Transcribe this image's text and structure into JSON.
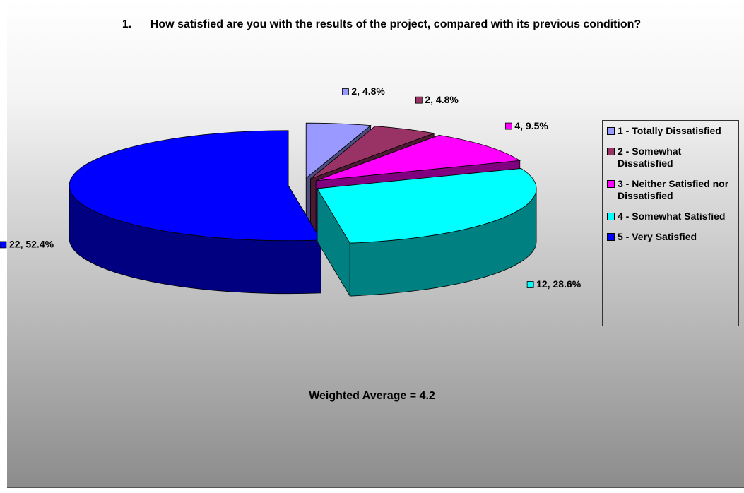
{
  "chart_data": {
    "type": "pie",
    "title": "1.      How satisfied are you with the results of the project, compared with its previous condition?",
    "categories": [
      "1 - Totally Dissatisfied",
      "2 - Somewhat Dissatisfied",
      "3 - Neither Satisfied nor Dissatisfied",
      "4 - Somewhat Satisfied",
      "5 - Very Satisfied"
    ],
    "values": [
      2,
      2,
      4,
      12,
      22
    ],
    "value_labels": [
      "2, 4.8%",
      "2, 4.8%",
      "4, 9.5%",
      "12, 28.6%",
      "22, 52.4%"
    ],
    "colors": [
      "#9999ff",
      "#993366",
      "#ff00ff",
      "#00ffff",
      "#0000ff"
    ],
    "legend": "right",
    "annotation": "Weighted Average = 4.2"
  }
}
